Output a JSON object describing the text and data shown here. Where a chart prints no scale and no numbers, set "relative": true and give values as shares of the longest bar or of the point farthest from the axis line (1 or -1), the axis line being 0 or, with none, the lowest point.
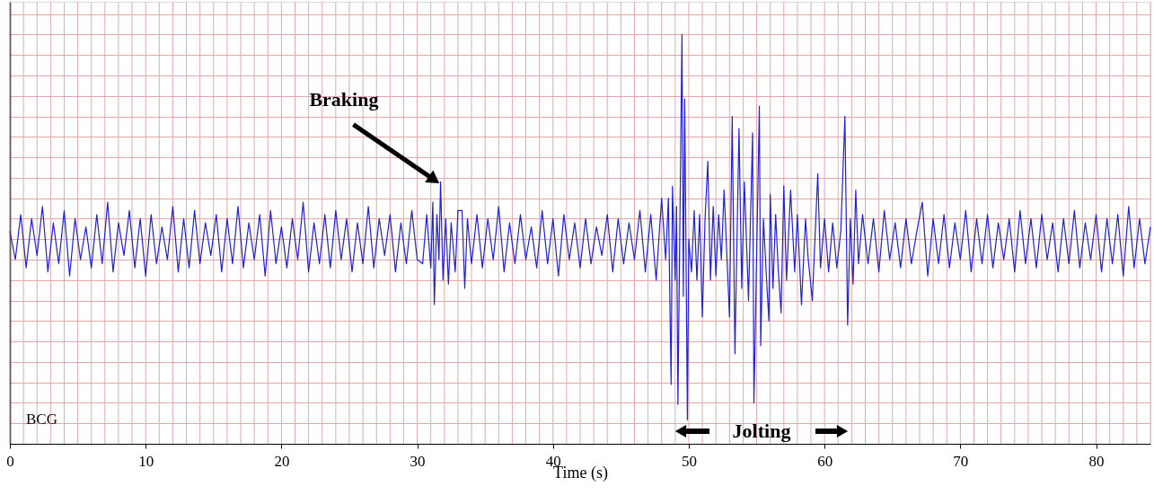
{
  "chart_data": {
    "type": "line",
    "relative": true,
    "xlabel": "Time (s)",
    "xlim": [
      0,
      84
    ],
    "xticks": [
      0,
      10,
      20,
      30,
      40,
      50,
      60,
      70,
      80
    ],
    "grid": true,
    "annotations": [
      {
        "text": "Braking",
        "x": 31.6,
        "y": 0.64
      },
      "Jolting",
      "BCG"
    ],
    "series": [
      {
        "color": "#1f1fdc",
        "x": [
          0,
          0.4,
          0.8,
          1.2,
          1.6,
          2,
          2.4,
          2.8,
          3.2,
          3.6,
          4,
          4.4,
          4.8,
          5.2,
          5.6,
          6,
          6.4,
          6.8,
          7.2,
          7.6,
          8,
          8.4,
          8.8,
          9.2,
          9.6,
          10,
          10.4,
          10.8,
          11.2,
          11.6,
          12,
          12.4,
          12.8,
          13.2,
          13.6,
          14,
          14.4,
          14.8,
          15.2,
          15.6,
          16,
          16.4,
          16.8,
          17.2,
          17.6,
          18,
          18.4,
          18.8,
          19.2,
          19.6,
          20,
          20.4,
          20.8,
          21.2,
          21.6,
          22,
          22.4,
          22.8,
          23.2,
          23.6,
          24,
          24.4,
          24.8,
          25.2,
          25.6,
          26,
          26.4,
          26.8,
          27.2,
          27.6,
          28,
          28.4,
          28.8,
          29.2,
          29.6,
          30,
          30.4,
          30.7,
          31.0,
          31.15,
          31.26,
          31.45,
          31.6,
          31.72,
          31.9,
          32.1,
          32.3,
          32.5,
          32.8,
          33.0,
          33.3,
          33.5,
          33.7,
          34.0,
          34.4,
          34.8,
          35.2,
          35.6,
          36,
          36.4,
          36.8,
          37.2,
          37.6,
          38,
          38.4,
          38.8,
          39.2,
          39.6,
          40,
          40.4,
          40.8,
          41.2,
          41.6,
          42,
          42.4,
          42.8,
          43.2,
          43.6,
          44,
          44.4,
          44.8,
          45.2,
          45.6,
          46,
          46.4,
          46.8,
          47.2,
          47.6,
          48,
          48.3,
          48.5,
          48.7,
          48.8,
          49.0,
          49.1,
          49.2,
          49.35,
          49.5,
          49.6,
          49.7,
          49.9,
          50.0,
          50.2,
          50.4,
          50.6,
          50.8,
          51.0,
          51.2,
          51.4,
          51.6,
          51.8,
          52.0,
          52.2,
          52.4,
          52.6,
          53.0,
          53.2,
          53.4,
          53.7,
          53.9,
          54.1,
          54.4,
          54.7,
          54.8,
          55.2,
          55.3,
          55.5,
          55.7,
          55.9,
          56.0,
          56.2,
          56.4,
          56.6,
          56.8,
          57.0,
          57.2,
          57.5,
          57.8,
          58.0,
          58.3,
          58.6,
          58.8,
          59.1,
          59.5,
          59.7,
          60.0,
          60.3,
          60.6,
          60.9,
          61.2,
          61.5,
          61.7,
          61.9,
          62.1,
          62.3,
          62.5,
          62.8,
          63.2,
          63.6,
          64,
          64.4,
          64.8,
          65.2,
          65.6,
          66,
          66.4,
          66.8,
          67.2,
          67.6,
          68,
          68.4,
          68.8,
          69.2,
          69.6,
          70,
          70.4,
          70.8,
          71.2,
          71.6,
          72,
          72.4,
          72.8,
          73.2,
          73.6,
          74,
          74.4,
          74.8,
          75.2,
          75.6,
          76,
          76.4,
          76.8,
          77.2,
          77.6,
          78,
          78.4,
          78.8,
          79.2,
          79.6,
          80,
          80.4,
          80.8,
          81.2,
          81.6,
          82,
          82.4,
          82.8,
          83.2,
          83.6,
          84
        ],
        "values": [
          0.52,
          0.45,
          0.56,
          0.43,
          0.55,
          0.46,
          0.58,
          0.42,
          0.54,
          0.44,
          0.57,
          0.41,
          0.55,
          0.45,
          0.53,
          0.43,
          0.56,
          0.44,
          0.59,
          0.42,
          0.54,
          0.46,
          0.57,
          0.43,
          0.55,
          0.41,
          0.56,
          0.44,
          0.53,
          0.45,
          0.58,
          0.42,
          0.55,
          0.43,
          0.57,
          0.44,
          0.54,
          0.46,
          0.56,
          0.42,
          0.55,
          0.44,
          0.58,
          0.43,
          0.54,
          0.45,
          0.56,
          0.41,
          0.57,
          0.44,
          0.53,
          0.43,
          0.55,
          0.45,
          0.59,
          0.42,
          0.54,
          0.44,
          0.56,
          0.43,
          0.57,
          0.45,
          0.55,
          0.42,
          0.54,
          0.44,
          0.58,
          0.43,
          0.55,
          0.46,
          0.56,
          0.42,
          0.54,
          0.44,
          0.57,
          0.45,
          0.44,
          0.56,
          0.43,
          0.59,
          0.34,
          0.56,
          0.45,
          0.64,
          0.4,
          0.55,
          0.39,
          0.54,
          0.42,
          0.57,
          0.57,
          0.38,
          0.55,
          0.44,
          0.56,
          0.43,
          0.55,
          0.45,
          0.58,
          0.42,
          0.54,
          0.44,
          0.56,
          0.45,
          0.53,
          0.43,
          0.57,
          0.44,
          0.55,
          0.41,
          0.56,
          0.45,
          0.54,
          0.43,
          0.55,
          0.44,
          0.53,
          0.46,
          0.56,
          0.42,
          0.55,
          0.44,
          0.54,
          0.45,
          0.57,
          0.42,
          0.56,
          0.4,
          0.6,
          0.45,
          0.6,
          0.145,
          0.629,
          0.4,
          0.58,
          0.096,
          0.55,
          1.0,
          0.36,
          0.842,
          0.059,
          0.5,
          0.42,
          0.57,
          0.4,
          0.56,
          0.31,
          0.55,
          0.69,
          0.4,
          0.58,
          0.41,
          0.56,
          0.45,
          0.62,
          0.31,
          0.8,
          0.22,
          0.77,
          0.38,
          0.64,
          0.35,
          0.76,
          0.1,
          0.825,
          0.24,
          0.55,
          0.42,
          0.3,
          0.61,
          0.38,
          0.56,
          0.42,
          0.32,
          0.63,
          0.4,
          0.62,
          0.42,
          0.56,
          0.34,
          0.55,
          0.45,
          0.35,
          0.66,
          0.43,
          0.55,
          0.42,
          0.54,
          0.43,
          0.52,
          0.8,
          0.29,
          0.55,
          0.39,
          0.62,
          0.44,
          0.56,
          0.44,
          0.55,
          0.42,
          0.57,
          0.45,
          0.54,
          0.43,
          0.55,
          0.44,
          0.52,
          0.59,
          0.41,
          0.55,
          0.44,
          0.56,
          0.43,
          0.54,
          0.45,
          0.57,
          0.42,
          0.55,
          0.44,
          0.56,
          0.43,
          0.54,
          0.45,
          0.55,
          0.42,
          0.57,
          0.44,
          0.55,
          0.43,
          0.56,
          0.45,
          0.54,
          0.42,
          0.55,
          0.44,
          0.57,
          0.43,
          0.54,
          0.45,
          0.56,
          0.42,
          0.55,
          0.44,
          0.56,
          0.41,
          0.58,
          0.43,
          0.55,
          0.44,
          0.53
        ]
      }
    ]
  }
}
